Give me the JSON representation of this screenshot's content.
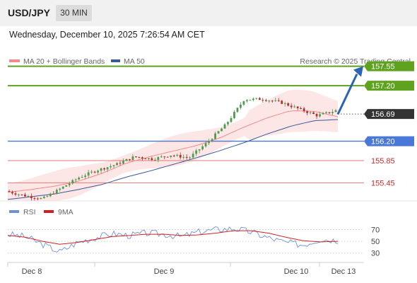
{
  "header": {
    "pair": "USD/JPY",
    "timeframe": "30 MIN"
  },
  "timestamp": "Wednesday, December 10, 2025 7:26:54 AM CET",
  "legend": {
    "ma20_label": "MA 20 + Bollinger Bands",
    "ma50_label": "MA 50",
    "credit": "Research © 2025 Trading Central",
    "rsi_label": "RSI",
    "ma9_label": "9MA"
  },
  "colors": {
    "ma20": "#f48a8a",
    "ma50": "#3a5a9a",
    "band": "#fde6e6",
    "bull": "#4f9a4f",
    "bear": "#b5302c",
    "resistance": "#5ea21f",
    "support": "#4a78d8",
    "support_red": "#e07a7a",
    "price_tag": "#333333",
    "arrow": "#2a64b2",
    "rsi": "#6f8fd8",
    "rsi_ma": "#cc2222"
  },
  "chart_data": [
    {
      "type": "line",
      "title": "",
      "x_labels": [
        "Dec 8",
        "Dec 9",
        "Dec 10",
        "Dec 13"
      ],
      "ylim": [
        155.2,
        157.75
      ],
      "current_price": 156.69,
      "levels": [
        {
          "label": "157.55",
          "value": 157.55,
          "kind": "resistance"
        },
        {
          "label": "157.20",
          "value": 157.2,
          "kind": "resistance"
        },
        {
          "label": "156.69",
          "value": 156.69,
          "kind": "price"
        },
        {
          "label": "156.20",
          "value": 156.2,
          "kind": "support"
        },
        {
          "label": "155.85",
          "value": 155.85,
          "kind": "support_minor"
        },
        {
          "label": "155.45",
          "value": 155.45,
          "kind": "support_minor"
        }
      ],
      "series": [
        {
          "name": "MA 20 + Bollinger Bands",
          "values": [
            155.28,
            155.33,
            155.39,
            155.48,
            155.62,
            155.8,
            155.92,
            156.02,
            156.12,
            156.26,
            156.45,
            156.62,
            156.75,
            156.74,
            156.64
          ]
        },
        {
          "name": "MA 50",
          "values": [
            155.15,
            155.2,
            155.25,
            155.33,
            155.42,
            155.55,
            155.66,
            155.78,
            155.9,
            156.03,
            156.17,
            156.33,
            156.47,
            156.57,
            156.59
          ]
        }
      ],
      "price_path": [
        155.3,
        155.22,
        155.16,
        155.35,
        155.55,
        155.68,
        155.78,
        155.92,
        155.88,
        155.95,
        155.9,
        156.18,
        156.5,
        156.95,
        156.96,
        156.9,
        156.78,
        156.66,
        156.75
      ]
    },
    {
      "type": "line",
      "title": "",
      "y_ticks": [
        "70",
        "50",
        "30"
      ],
      "ylim": [
        20,
        85
      ],
      "series": [
        {
          "name": "RSI",
          "values": [
            62,
            58,
            45,
            32,
            48,
            56,
            63,
            60,
            64,
            62,
            58,
            66,
            70,
            72,
            66,
            56,
            48,
            44,
            54,
            52
          ]
        },
        {
          "name": "9MA",
          "values": [
            60,
            57,
            50,
            45,
            48,
            53,
            58,
            60,
            62,
            62,
            60,
            61,
            64,
            68,
            68,
            64,
            57,
            51,
            49,
            50
          ]
        }
      ]
    }
  ]
}
